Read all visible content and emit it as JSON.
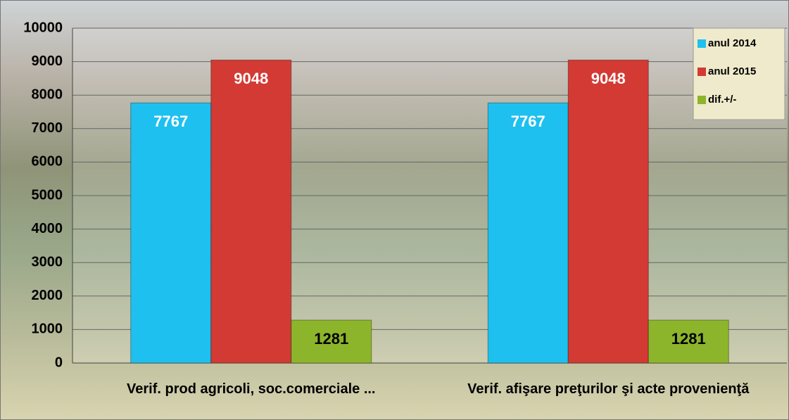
{
  "chart_data": {
    "type": "bar",
    "categories": [
      "Verif. prod agricoli, soc.comerciale ...",
      "Verif. afişare preţurilor şi acte provenienţă"
    ],
    "series": [
      {
        "name": "anul 2014",
        "color": "#1ec0ef",
        "values": [
          7767,
          7767
        ]
      },
      {
        "name": "anul 2015",
        "color": "#d33a34",
        "values": [
          9048,
          9048
        ]
      },
      {
        "name": "dif.+/-",
        "color": "#8db52b",
        "values": [
          1281,
          1281
        ]
      }
    ],
    "ylim": [
      0,
      10000
    ],
    "yticks": [
      0,
      1000,
      2000,
      3000,
      4000,
      5000,
      6000,
      7000,
      8000,
      9000,
      10000
    ],
    "grid": true,
    "legend": "top-right"
  }
}
